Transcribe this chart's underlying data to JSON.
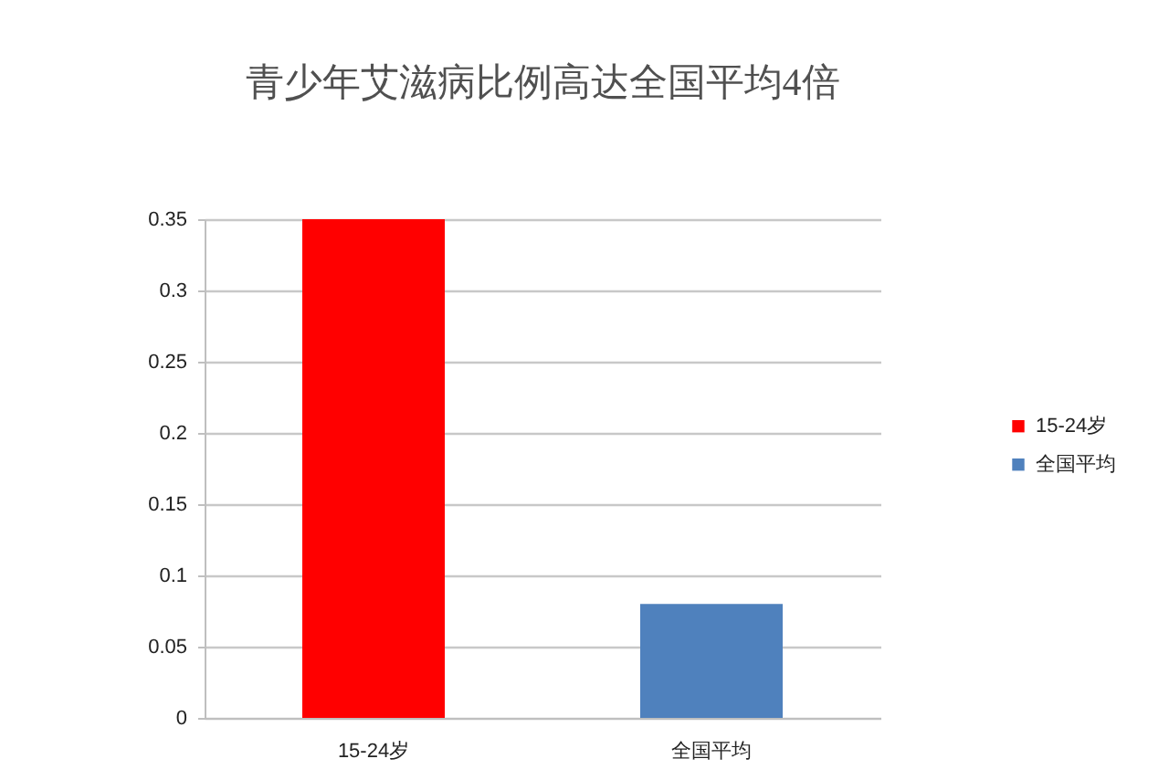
{
  "chart_data": {
    "type": "bar",
    "title": "青少年艾滋病比例高达全国平均4倍",
    "categories": [
      "15-24岁",
      "全国平均"
    ],
    "series": [
      {
        "name": "15-24岁",
        "color": "#ff0000",
        "values": [
          0.35,
          null
        ]
      },
      {
        "name": "全国平均",
        "color": "#4f81bd",
        "values": [
          null,
          0.08
        ]
      }
    ],
    "stacked": true,
    "ylim": [
      0,
      0.35
    ],
    "yticks": [
      0,
      0.05,
      0.1,
      0.15,
      0.2,
      0.25,
      0.3,
      0.35
    ],
    "grid": "y",
    "legend": "right"
  }
}
